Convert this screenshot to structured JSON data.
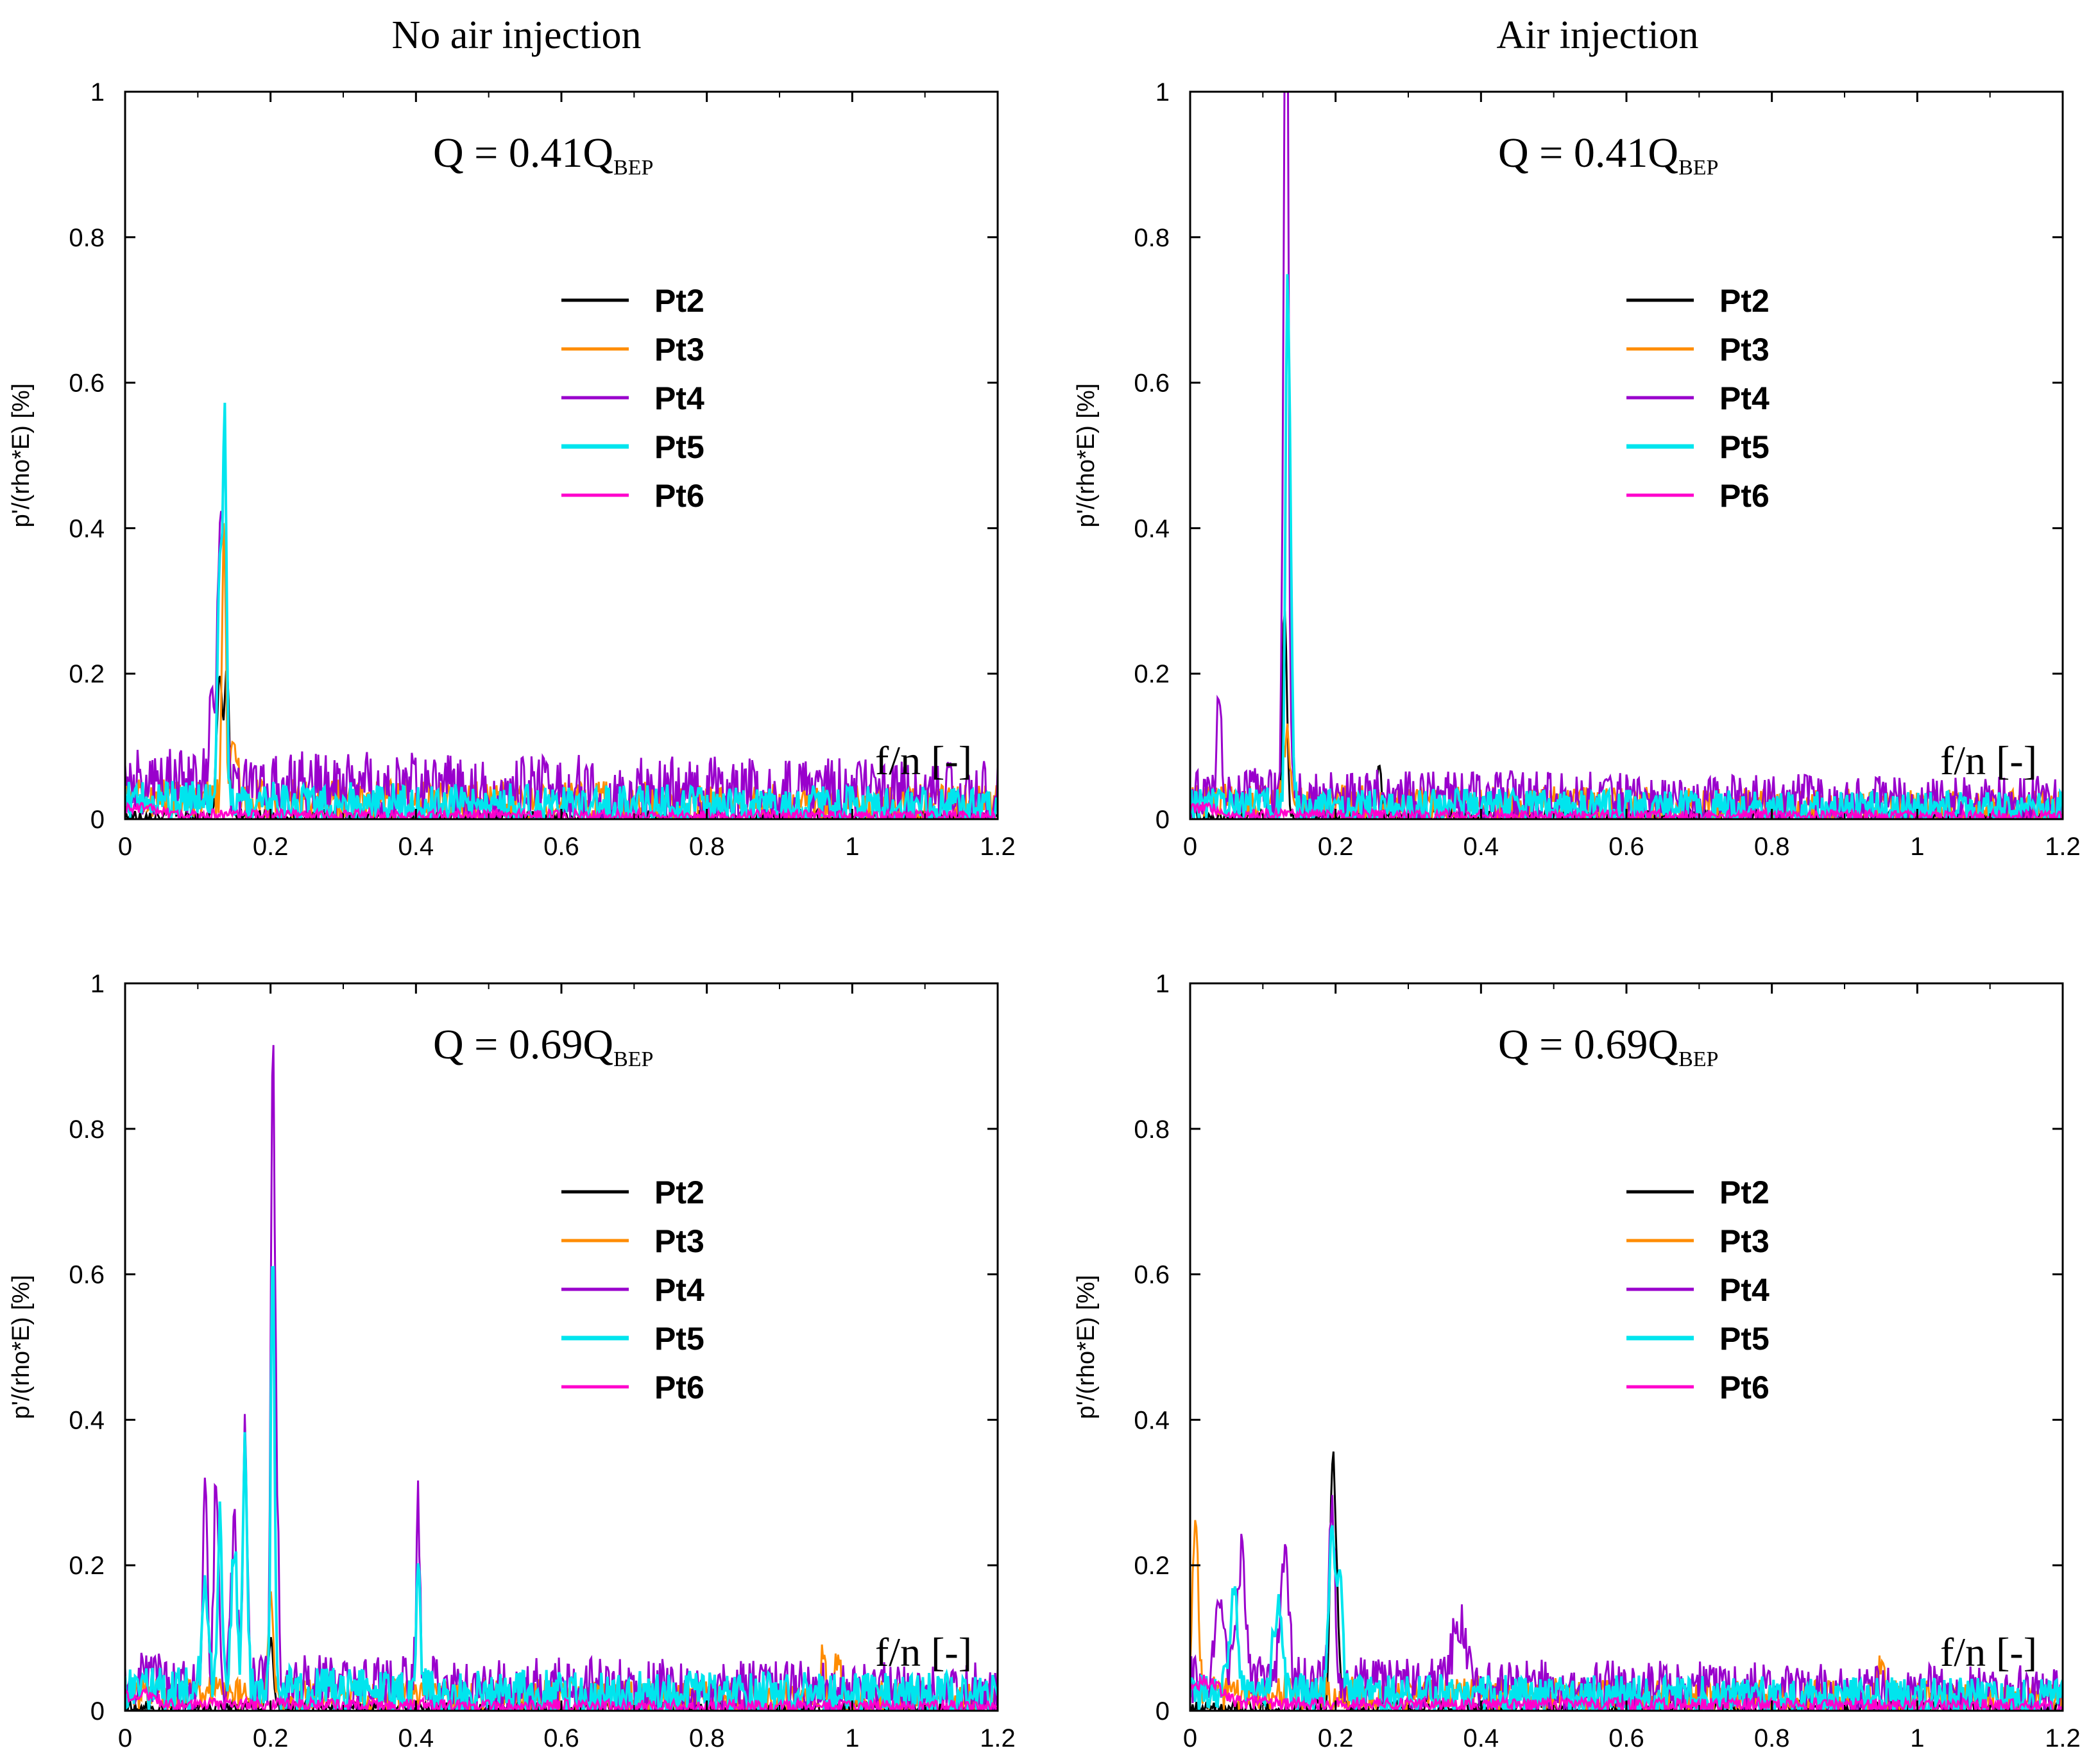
{
  "column_titles": [
    "No air injection",
    "Air injection"
  ],
  "chart_data": [
    {
      "type": "line",
      "column": "No air injection",
      "title": "Q = 0.41Q",
      "title_subscript": "BEP",
      "xlabel": "f/n [-]",
      "ylabel": "p'/(rho*E) [%]",
      "xlim": [
        0,
        1.2
      ],
      "ylim": [
        0,
        1
      ],
      "xticks": [
        "0",
        "0.2",
        "0.4",
        "0.6",
        "0.8",
        "1",
        "1.2"
      ],
      "yticks": [
        "0",
        "0.2",
        "0.4",
        "0.6",
        "0.8",
        "1"
      ],
      "legend": [
        "Pt2",
        "Pt3",
        "Pt4",
        "Pt5",
        "Pt6"
      ],
      "legend_position": "upper-center",
      "noise_seed": 11,
      "series": [
        {
          "name": "Pt2",
          "color": "#000000",
          "noise_base": 0.004,
          "noise_amp": 0.012,
          "peaks": [
            [
              0.13,
              0.19,
              0.004
            ],
            [
              0.14,
              0.2,
              0.003
            ]
          ]
        },
        {
          "name": "Pt3",
          "color": "#ff8c00",
          "noise_base": 0.03,
          "noise_amp": 0.035,
          "peaks": [
            [
              0.136,
              0.38,
              0.0025
            ],
            [
              0.15,
              0.09,
              0.004
            ]
          ]
        },
        {
          "name": "Pt4",
          "color": "#9900cc",
          "noise_base": 0.05,
          "noise_amp": 0.06,
          "peaks": [
            [
              0.13,
              0.34,
              0.003
            ],
            [
              0.137,
              0.5,
              0.0025
            ],
            [
              0.12,
              0.16,
              0.004
            ]
          ]
        },
        {
          "name": "Pt5",
          "color": "#00e5ee",
          "noise_base": 0.025,
          "noise_amp": 0.035,
          "peaks": [
            [
              0.137,
              0.51,
              0.0025
            ],
            [
              0.13,
              0.33,
              0.003
            ]
          ]
        },
        {
          "name": "Pt6",
          "color": "#ff00cc",
          "noise_base": 0.006,
          "noise_amp": 0.01,
          "peaks": [
            [
              0.02,
              0.01,
              0.02
            ]
          ]
        }
      ]
    },
    {
      "type": "line",
      "column": "Air injection",
      "title": "Q = 0.41Q",
      "title_subscript": "BEP",
      "xlabel": "f/n [-]",
      "ylabel": "p'/(rho*E) [%]",
      "xlim": [
        0,
        1.2
      ],
      "ylim": [
        0,
        1
      ],
      "xticks": [
        "0",
        "0.2",
        "0.4",
        "0.6",
        "0.8",
        "1",
        "1.2"
      ],
      "yticks": [
        "0",
        "0.2",
        "0.4",
        "0.6",
        "0.8",
        "1"
      ],
      "legend": [
        "Pt2",
        "Pt3",
        "Pt4",
        "Pt5",
        "Pt6"
      ],
      "legend_position": "upper-center",
      "noise_seed": 23,
      "series": [
        {
          "name": "Pt2",
          "color": "#000000",
          "noise_base": 0.004,
          "noise_amp": 0.012,
          "peaks": [
            [
              0.13,
              0.29,
              0.003
            ],
            [
              0.26,
              0.08,
              0.003
            ]
          ]
        },
        {
          "name": "Pt3",
          "color": "#ff8c00",
          "noise_base": 0.025,
          "noise_amp": 0.03,
          "peaks": [
            [
              0.133,
              0.1,
              0.004
            ]
          ]
        },
        {
          "name": "Pt4",
          "color": "#9900cc",
          "noise_base": 0.035,
          "noise_amp": 0.045,
          "peaks": [
            [
              0.133,
              0.94,
              0.0025
            ],
            [
              0.13,
              0.62,
              0.003
            ],
            [
              0.04,
              0.13,
              0.003
            ]
          ]
        },
        {
          "name": "Pt5",
          "color": "#00e5ee",
          "noise_base": 0.02,
          "noise_amp": 0.03,
          "peaks": [
            [
              0.133,
              0.53,
              0.0025
            ],
            [
              0.137,
              0.38,
              0.003
            ]
          ]
        },
        {
          "name": "Pt6",
          "color": "#ff00cc",
          "noise_base": 0.006,
          "noise_amp": 0.01,
          "peaks": [
            [
              0.02,
              0.01,
              0.02
            ]
          ]
        }
      ]
    },
    {
      "type": "line",
      "column": "No air injection",
      "title": "Q = 0.69Q",
      "title_subscript": "BEP",
      "xlabel": "f/n [-]",
      "ylabel": "p'/(rho*E) [%]",
      "xlim": [
        0,
        1.2
      ],
      "ylim": [
        0,
        1
      ],
      "xticks": [
        "0",
        "0.2",
        "0.4",
        "0.6",
        "0.8",
        "1",
        "1.2"
      ],
      "yticks": [
        "0",
        "0.2",
        "0.4",
        "0.6",
        "0.8",
        "1"
      ],
      "legend": [
        "Pt2",
        "Pt3",
        "Pt4",
        "Pt5",
        "Pt6"
      ],
      "legend_position": "upper-center",
      "noise_seed": 37,
      "series": [
        {
          "name": "Pt2",
          "color": "#000000",
          "noise_base": 0.004,
          "noise_amp": 0.012,
          "peaks": [
            [
              0.2,
              0.09,
              0.004
            ]
          ]
        },
        {
          "name": "Pt3",
          "color": "#ff8c00",
          "noise_base": 0.025,
          "noise_amp": 0.03,
          "peaks": [
            [
              0.2,
              0.12,
              0.004
            ],
            [
              0.96,
              0.07,
              0.003
            ],
            [
              0.98,
              0.05,
              0.004
            ]
          ]
        },
        {
          "name": "Pt4",
          "color": "#9900cc",
          "noise_base": 0.04,
          "noise_amp": 0.05,
          "peaks": [
            [
              0.203,
              0.82,
              0.0025
            ],
            [
              0.165,
              0.35,
              0.003
            ],
            [
              0.125,
              0.3,
              0.003
            ],
            [
              0.11,
              0.26,
              0.003
            ],
            [
              0.208,
              0.26,
              0.003
            ],
            [
              0.403,
              0.26,
              0.0025
            ],
            [
              0.15,
              0.22,
              0.004
            ]
          ]
        },
        {
          "name": "Pt5",
          "color": "#00e5ee",
          "noise_base": 0.03,
          "noise_amp": 0.04,
          "peaks": [
            [
              0.203,
              0.61,
              0.0025
            ],
            [
              0.165,
              0.34,
              0.003
            ],
            [
              0.13,
              0.24,
              0.003
            ],
            [
              0.15,
              0.2,
              0.004
            ],
            [
              0.403,
              0.18,
              0.0025
            ],
            [
              0.11,
              0.17,
              0.004
            ]
          ]
        },
        {
          "name": "Pt6",
          "color": "#ff00cc",
          "noise_base": 0.008,
          "noise_amp": 0.012,
          "peaks": [
            [
              0.02,
              0.015,
              0.02
            ]
          ]
        }
      ]
    },
    {
      "type": "line",
      "column": "Air injection",
      "title": "Q = 0.69Q",
      "title_subscript": "BEP",
      "xlabel": "f/n [-]",
      "ylabel": "p'/(rho*E) [%]",
      "xlim": [
        0,
        1.2
      ],
      "ylim": [
        0,
        1
      ],
      "xticks": [
        "0",
        "0.2",
        "0.4",
        "0.6",
        "0.8",
        "1",
        "1.2"
      ],
      "yticks": [
        "0",
        "0.2",
        "0.4",
        "0.6",
        "0.8",
        "1"
      ],
      "legend": [
        "Pt2",
        "Pt3",
        "Pt4",
        "Pt5",
        "Pt6"
      ],
      "legend_position": "upper-center",
      "noise_seed": 53,
      "series": [
        {
          "name": "Pt2",
          "color": "#000000",
          "noise_base": 0.004,
          "noise_amp": 0.015,
          "peaks": [
            [
              0.195,
              0.24,
              0.003
            ],
            [
              0.2,
              0.2,
              0.004
            ]
          ]
        },
        {
          "name": "Pt3",
          "color": "#ff8c00",
          "noise_base": 0.025,
          "noise_amp": 0.03,
          "peaks": [
            [
              0.005,
              0.18,
              0.003
            ],
            [
              0.01,
              0.14,
              0.003
            ],
            [
              0.95,
              0.05,
              0.004
            ]
          ]
        },
        {
          "name": "Pt4",
          "color": "#9900cc",
          "noise_base": 0.04,
          "noise_amp": 0.045,
          "peaks": [
            [
              0.195,
              0.24,
              0.004
            ],
            [
              0.07,
              0.17,
              0.006
            ],
            [
              0.13,
              0.16,
              0.006
            ],
            [
              0.04,
              0.13,
              0.006
            ],
            [
              0.37,
              0.08,
              0.01
            ]
          ]
        },
        {
          "name": "Pt5",
          "color": "#00e5ee",
          "noise_base": 0.025,
          "noise_amp": 0.035,
          "peaks": [
            [
              0.195,
              0.22,
              0.004
            ],
            [
              0.205,
              0.16,
              0.004
            ],
            [
              0.06,
              0.13,
              0.006
            ],
            [
              0.12,
              0.12,
              0.006
            ]
          ]
        },
        {
          "name": "Pt6",
          "color": "#ff00cc",
          "noise_base": 0.01,
          "noise_amp": 0.012,
          "peaks": [
            [
              0.02,
              0.03,
              0.02
            ]
          ]
        }
      ]
    }
  ]
}
